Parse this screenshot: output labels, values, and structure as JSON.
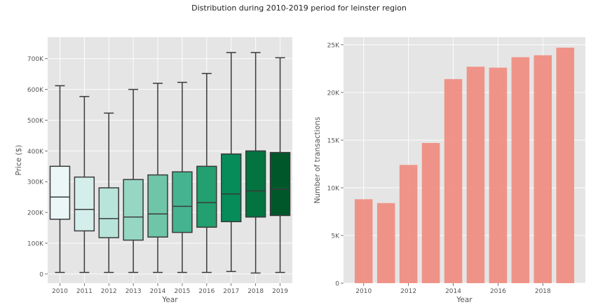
{
  "figure": {
    "title": "Distribution during 2010-2019 period for leinster region"
  },
  "chart_data": [
    {
      "type": "box",
      "xlabel": "Year",
      "ylabel": "Price ($)",
      "categories": [
        "2010",
        "2011",
        "2012",
        "2013",
        "2014",
        "2015",
        "2016",
        "2017",
        "2018",
        "2019"
      ],
      "boxes": [
        {
          "whislo": 5000,
          "q1": 178000,
          "med": 250000,
          "q3": 350000,
          "whishi": 612000
        },
        {
          "whislo": 5000,
          "q1": 140000,
          "med": 210000,
          "q3": 315000,
          "whishi": 577000
        },
        {
          "whislo": 5000,
          "q1": 118000,
          "med": 180000,
          "q3": 280000,
          "whishi": 523000
        },
        {
          "whislo": 5000,
          "q1": 110000,
          "med": 185000,
          "q3": 307000,
          "whishi": 600000
        },
        {
          "whislo": 5000,
          "q1": 120000,
          "med": 195000,
          "q3": 322000,
          "whishi": 620000
        },
        {
          "whislo": 5000,
          "q1": 135000,
          "med": 220000,
          "q3": 332000,
          "whishi": 623000
        },
        {
          "whislo": 5000,
          "q1": 152000,
          "med": 232000,
          "q3": 350000,
          "whishi": 652000
        },
        {
          "whislo": 8000,
          "q1": 170000,
          "med": 260000,
          "q3": 390000,
          "whishi": 720000
        },
        {
          "whislo": 3000,
          "q1": 185000,
          "med": 270000,
          "q3": 400000,
          "whishi": 720000
        },
        {
          "whislo": 5000,
          "q1": 190000,
          "med": 275000,
          "q3": 395000,
          "whishi": 703000
        }
      ],
      "colors": [
        "#eaf7f6",
        "#d4efeb",
        "#b8e4da",
        "#96d7c4",
        "#6ec5a8",
        "#46b390",
        "#22a06f",
        "#058c58",
        "#03733f",
        "#00582a"
      ],
      "ylim": [
        -30000,
        770000
      ],
      "yticks": [
        0,
        100000,
        200000,
        300000,
        400000,
        500000,
        600000,
        700000
      ],
      "yticklabels": [
        "0",
        "100K",
        "200K",
        "300K",
        "400K",
        "500K",
        "600K",
        "700K"
      ],
      "grid": true
    },
    {
      "type": "bar",
      "xlabel": "Year",
      "ylabel": "Number of transactions",
      "x": [
        2010,
        2011,
        2012,
        2013,
        2014,
        2015,
        2016,
        2017,
        2018,
        2019
      ],
      "values": [
        8800,
        8400,
        12400,
        14700,
        21400,
        22700,
        22600,
        23700,
        23900,
        24700
      ],
      "color": "#f08c80",
      "xlim": [
        2009.1,
        2019.9
      ],
      "ylim": [
        0,
        25800
      ],
      "xticks": [
        2010,
        2012,
        2014,
        2016,
        2018
      ],
      "yticks": [
        0,
        5000,
        10000,
        15000,
        20000,
        25000
      ],
      "yticklabels": [
        "0",
        "5K",
        "10K",
        "15K",
        "20K",
        "25K"
      ],
      "grid": true
    }
  ]
}
